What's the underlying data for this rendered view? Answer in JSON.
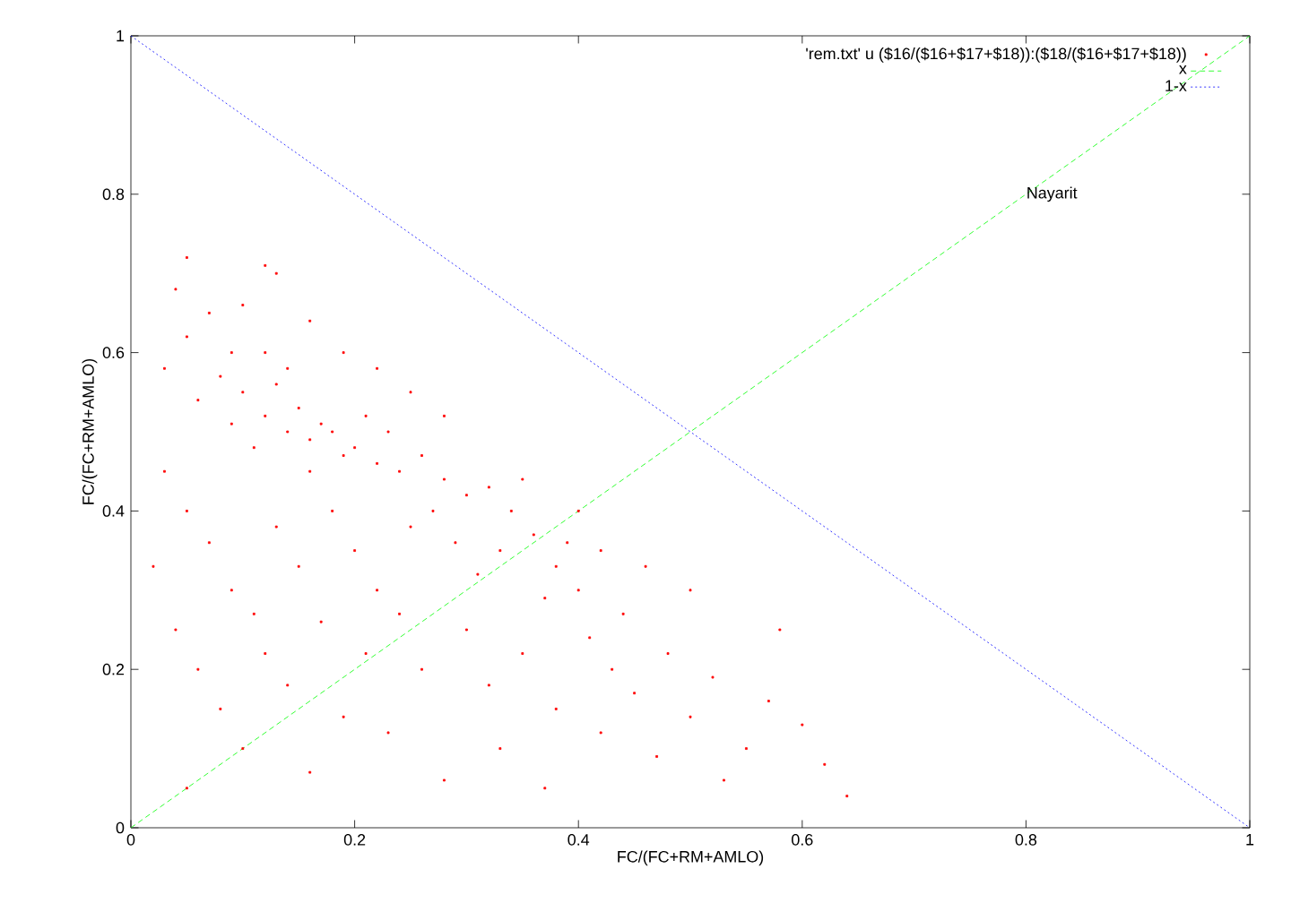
{
  "chart_data": {
    "type": "scatter",
    "xlabel": "FC/(FC+RM+AMLO)",
    "ylabel": "FC/(FC+RM+AMLO)",
    "xlim": [
      0,
      1
    ],
    "ylim": [
      0,
      1
    ],
    "xticks": [
      0,
      0.2,
      0.4,
      0.6,
      0.8,
      1
    ],
    "yticks": [
      0,
      0.2,
      0.4,
      0.6,
      0.8,
      1
    ],
    "grid": false,
    "legend": "top right",
    "marker": "square",
    "annotations": [
      {
        "text": "Nayarit",
        "x": 0.8,
        "y": 0.8
      }
    ],
    "series": [
      {
        "name": "'rem.txt' u ($16/($16+$17+$18)):($18/($16+$17+$18))",
        "color": "#ff0000",
        "x": [
          0.1,
          0.12,
          0.14,
          0.16,
          0.18,
          0.2,
          0.13,
          0.15,
          0.17,
          0.19,
          0.22,
          0.24,
          0.11,
          0.09,
          0.08,
          0.12,
          0.14,
          0.16,
          0.21,
          0.23,
          0.26,
          0.28,
          0.3,
          0.27,
          0.25,
          0.32,
          0.34,
          0.36,
          0.35,
          0.33,
          0.31,
          0.29,
          0.38,
          0.4,
          0.37,
          0.39,
          0.05,
          0.04,
          0.07,
          0.1,
          0.13,
          0.16,
          0.19,
          0.22,
          0.25,
          0.28,
          0.03,
          0.06,
          0.05,
          0.12,
          0.09,
          0.03,
          0.05,
          0.07,
          0.09,
          0.11,
          0.13,
          0.15,
          0.18,
          0.2,
          0.22,
          0.04,
          0.06,
          0.08,
          0.1,
          0.02,
          0.12,
          0.14,
          0.17,
          0.19,
          0.21,
          0.24,
          0.26,
          0.23,
          0.05,
          0.16,
          0.3,
          0.32,
          0.35,
          0.38,
          0.33,
          0.41,
          0.43,
          0.45,
          0.42,
          0.47,
          0.44,
          0.48,
          0.5,
          0.52,
          0.55,
          0.57,
          0.53,
          0.6,
          0.62,
          0.58,
          0.46,
          0.5,
          0.28,
          0.37,
          0.64,
          0.4,
          0.42
        ],
        "values": [
          0.55,
          0.52,
          0.5,
          0.49,
          0.5,
          0.48,
          0.56,
          0.53,
          0.51,
          0.47,
          0.46,
          0.45,
          0.48,
          0.51,
          0.57,
          0.6,
          0.58,
          0.45,
          0.52,
          0.5,
          0.47,
          0.44,
          0.42,
          0.4,
          0.38,
          0.43,
          0.4,
          0.37,
          0.44,
          0.35,
          0.32,
          0.36,
          0.33,
          0.3,
          0.29,
          0.36,
          0.62,
          0.68,
          0.65,
          0.66,
          0.7,
          0.64,
          0.6,
          0.58,
          0.55,
          0.52,
          0.58,
          0.54,
          0.72,
          0.71,
          0.6,
          0.45,
          0.4,
          0.36,
          0.3,
          0.27,
          0.38,
          0.33,
          0.4,
          0.35,
          0.3,
          0.25,
          0.2,
          0.15,
          0.1,
          0.33,
          0.22,
          0.18,
          0.26,
          0.14,
          0.22,
          0.27,
          0.2,
          0.12,
          0.05,
          0.07,
          0.25,
          0.18,
          0.22,
          0.15,
          0.1,
          0.24,
          0.2,
          0.17,
          0.12,
          0.09,
          0.27,
          0.22,
          0.14,
          0.19,
          0.1,
          0.16,
          0.06,
          0.13,
          0.08,
          0.25,
          0.33,
          0.3,
          0.06,
          0.05,
          0.04,
          0.4,
          0.35
        ]
      },
      {
        "name": "x",
        "type": "line",
        "color": "#00ff00",
        "line_style": "dashed",
        "marker": "none",
        "x": [
          0,
          1
        ],
        "values": [
          0,
          1
        ]
      },
      {
        "name": "1-x",
        "type": "line",
        "color": "#0000ff",
        "line_style": "dotted",
        "marker": "none",
        "x": [
          0,
          1
        ],
        "values": [
          1,
          0
        ]
      }
    ]
  }
}
